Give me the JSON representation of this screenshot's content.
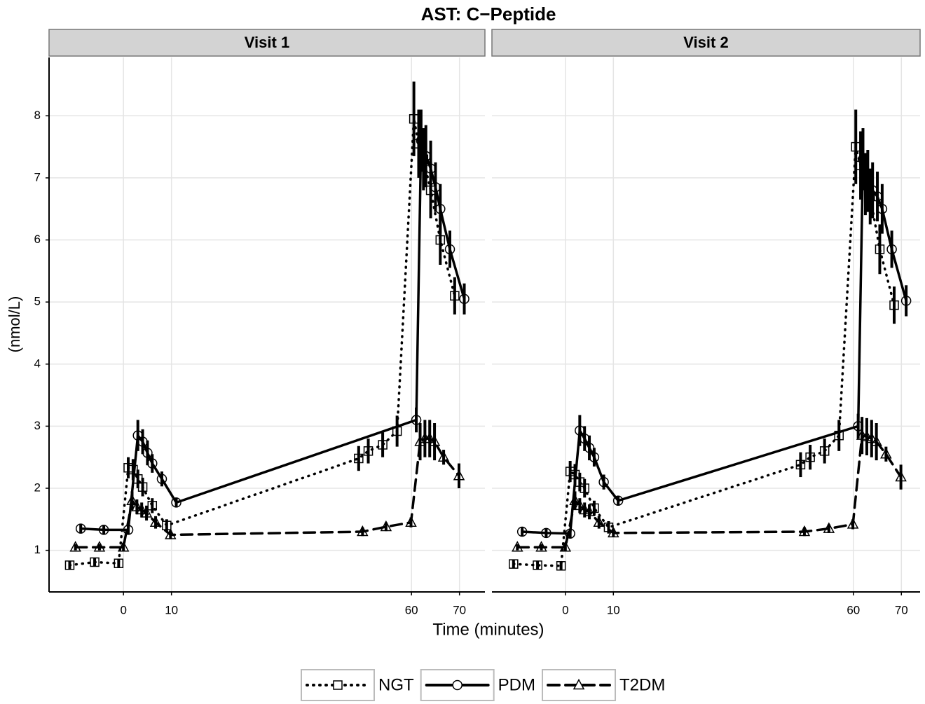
{
  "title": "AST: C−Peptide",
  "xlabel": "Time (minutes)",
  "ylabel": "(nmol/L)",
  "chart_data": [
    {
      "type": "line",
      "facet": "Visit 1",
      "xlim": [
        -15.5,
        75.3
      ],
      "ylim": [
        0.33,
        8.94
      ],
      "xticks": [
        0,
        10,
        60,
        70
      ],
      "yticks": [
        1,
        2,
        3,
        4,
        5,
        6,
        7,
        8
      ],
      "grid": true,
      "series": [
        {
          "name": "NGT",
          "color": "#000000",
          "dash": "dotted",
          "marker": "square",
          "x": [
            -11.2,
            -6,
            -1,
            1,
            2,
            3,
            4,
            6,
            9,
            49,
            51,
            54,
            57,
            60.5,
            61.5,
            62.5,
            64,
            66,
            69
          ],
          "values": [
            0.76,
            0.81,
            0.79,
            2.33,
            2.3,
            2.15,
            2.02,
            1.72,
            1.4,
            2.48,
            2.6,
            2.7,
            2.92,
            7.95,
            7.55,
            7.3,
            6.8,
            6.0,
            5.1
          ],
          "errors": [
            0.07,
            0.07,
            0.07,
            0.17,
            0.17,
            0.15,
            0.15,
            0.12,
            0.1,
            0.2,
            0.2,
            0.2,
            0.25,
            0.6,
            0.55,
            0.5,
            0.45,
            0.4,
            0.3
          ]
        },
        {
          "name": "PDM",
          "color": "#000000",
          "dash": "solid",
          "marker": "circle",
          "x": [
            -8.9,
            -4.1,
            1,
            3,
            4,
            5,
            6,
            8,
            11,
            61,
            62,
            63,
            64,
            65,
            66,
            68,
            71
          ],
          "values": [
            1.35,
            1.33,
            1.33,
            2.85,
            2.75,
            2.57,
            2.4,
            2.15,
            1.77,
            3.1,
            7.6,
            7.35,
            7.15,
            6.85,
            6.5,
            5.85,
            5.05
          ],
          "errors": [
            0.07,
            0.07,
            0.07,
            0.25,
            0.2,
            0.2,
            0.15,
            0.12,
            0.08,
            0.2,
            0.5,
            0.5,
            0.45,
            0.4,
            0.4,
            0.3,
            0.25
          ]
        },
        {
          "name": "T2DM",
          "color": "#000000",
          "dash": "dashed",
          "marker": "triangle",
          "x": [
            -10,
            -5,
            0,
            1.8,
            2.8,
            3.8,
            4.8,
            6.7,
            9.8,
            49.8,
            54.7,
            59.9,
            61.8,
            62.8,
            63.8,
            64.8,
            66.7,
            69.9
          ],
          "values": [
            1.05,
            1.05,
            1.05,
            1.8,
            1.7,
            1.65,
            1.6,
            1.45,
            1.25,
            1.3,
            1.38,
            1.45,
            2.75,
            2.8,
            2.8,
            2.75,
            2.5,
            2.2
          ],
          "errors": [
            0.05,
            0.05,
            0.07,
            0.15,
            0.12,
            0.12,
            0.12,
            0.1,
            0.07,
            0.07,
            0.07,
            0.08,
            0.3,
            0.3,
            0.3,
            0.3,
            0.12,
            0.2
          ]
        }
      ]
    },
    {
      "type": "line",
      "facet": "Visit 2",
      "xlim": [
        -15.3,
        73.9
      ],
      "ylim": [
        0.33,
        8.94
      ],
      "xticks": [
        0,
        10,
        60,
        70
      ],
      "yticks": [
        1,
        2,
        3,
        4,
        5,
        6,
        7,
        8
      ],
      "grid": true,
      "series": [
        {
          "name": "NGT",
          "color": "#000000",
          "dash": "dotted",
          "marker": "square",
          "x": [
            -10.8,
            -5.8,
            -0.9,
            1,
            2,
            3,
            4,
            6,
            9,
            49,
            51,
            54,
            57,
            60.5,
            61.5,
            62.5,
            63.5,
            65.5,
            68.5
          ],
          "values": [
            0.78,
            0.76,
            0.75,
            2.27,
            2.22,
            2.1,
            2.0,
            1.68,
            1.37,
            2.38,
            2.5,
            2.6,
            2.85,
            7.5,
            7.2,
            6.9,
            6.7,
            5.85,
            4.95
          ],
          "errors": [
            0.07,
            0.07,
            0.07,
            0.17,
            0.17,
            0.15,
            0.15,
            0.12,
            0.1,
            0.2,
            0.2,
            0.2,
            0.25,
            0.6,
            0.55,
            0.5,
            0.45,
            0.4,
            0.3
          ]
        },
        {
          "name": "PDM",
          "color": "#000000",
          "dash": "solid",
          "marker": "circle",
          "x": [
            -9,
            -4,
            1,
            3,
            4,
            5,
            6,
            8,
            11,
            61,
            62,
            63,
            64,
            65,
            66,
            68,
            71
          ],
          "values": [
            1.3,
            1.28,
            1.27,
            2.93,
            2.8,
            2.65,
            2.5,
            2.1,
            1.8,
            3.0,
            7.3,
            6.95,
            6.8,
            6.7,
            6.5,
            5.85,
            5.02
          ],
          "errors": [
            0.07,
            0.07,
            0.07,
            0.25,
            0.2,
            0.2,
            0.15,
            0.12,
            0.08,
            0.2,
            0.5,
            0.5,
            0.45,
            0.4,
            0.4,
            0.3,
            0.25
          ]
        },
        {
          "name": "T2DM",
          "color": "#000000",
          "dash": "dashed",
          "marker": "triangle",
          "x": [
            -10,
            -5,
            0,
            2,
            3,
            4,
            5,
            7,
            10,
            49.8,
            54.9,
            59.9,
            61.8,
            62.8,
            63.8,
            64.8,
            66.8,
            69.9
          ],
          "values": [
            1.05,
            1.05,
            1.05,
            1.8,
            1.72,
            1.65,
            1.62,
            1.45,
            1.28,
            1.3,
            1.35,
            1.42,
            2.85,
            2.83,
            2.8,
            2.75,
            2.55,
            2.18
          ],
          "errors": [
            0.05,
            0.05,
            0.07,
            0.15,
            0.12,
            0.12,
            0.12,
            0.1,
            0.07,
            0.07,
            0.07,
            0.08,
            0.3,
            0.3,
            0.3,
            0.3,
            0.12,
            0.2
          ]
        }
      ]
    }
  ]
}
